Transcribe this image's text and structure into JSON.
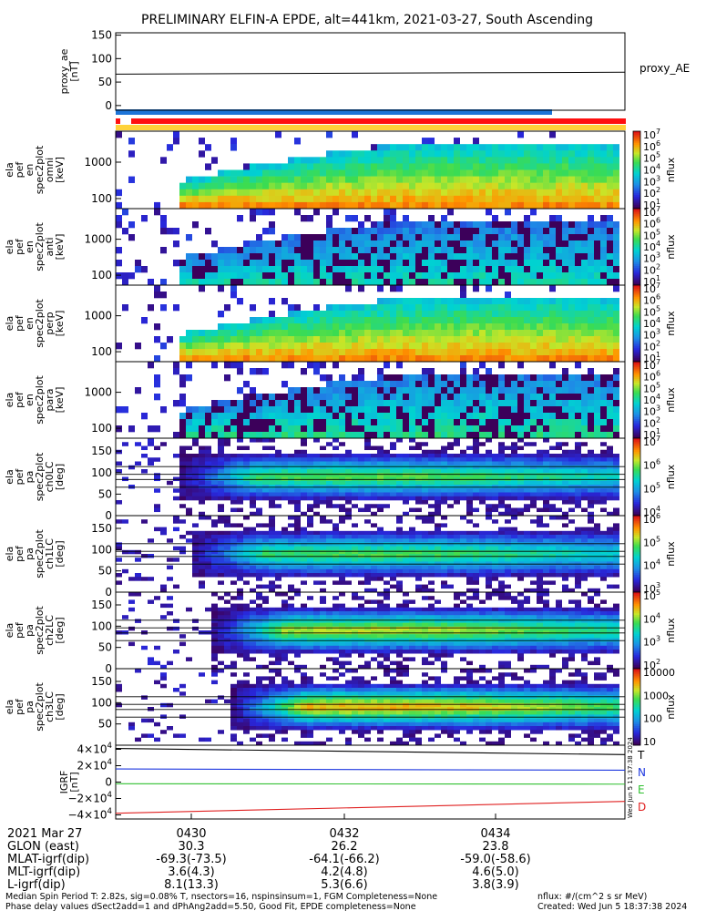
{
  "title": "PRELIMINARY ELFIN-A EPDE, alt=441km, 2021-03-27, South Ascending",
  "colors": {
    "blue_bar": "#1d74d8",
    "red_bar": "#ff1010",
    "yellow_bar": "#ffd23a",
    "T": "#000000",
    "N": "#1e38e0",
    "E": "#30c030",
    "D": "#e02020"
  },
  "chart_data": [
    {
      "type": "line",
      "panel": "proxy_ae",
      "ylabel_lines": [
        "proxy_ae",
        "[nT]"
      ],
      "yticks": [
        "150",
        "100",
        "50",
        "0"
      ],
      "ylim": [
        -10,
        155
      ],
      "series": [
        {
          "name": "proxy_AE",
          "values": [
            67,
            71
          ]
        }
      ],
      "x": [
        "start",
        "end"
      ]
    },
    {
      "type": "heatmap",
      "panel": "energy-spectrogram-1",
      "ylabel_lines": [
        "ela",
        "pef",
        "en",
        "spec2plot",
        "omni",
        "[keV]"
      ],
      "yticks": [
        "1000",
        "100"
      ],
      "y_scale": "log",
      "colorbar_ticks": [
        "10^7",
        "10^6",
        "10^5",
        "10^4",
        "10^3",
        "10^2",
        "10^1"
      ],
      "colorbar_label": "nflux"
    },
    {
      "type": "heatmap",
      "panel": "energy-spectrogram-2",
      "ylabel_lines": [
        "ela",
        "pef",
        "en",
        "spec2plot",
        "anti",
        "[keV]"
      ],
      "yticks": [
        "1000",
        "100"
      ],
      "y_scale": "log",
      "colorbar_ticks": [
        "10^7",
        "10^6",
        "10^5",
        "10^4",
        "10^3",
        "10^2",
        "10^1"
      ],
      "colorbar_label": "nflux"
    },
    {
      "type": "heatmap",
      "panel": "energy-spectrogram-3",
      "ylabel_lines": [
        "ela",
        "pef",
        "en",
        "spec2plot",
        "perp",
        "[keV]"
      ],
      "yticks": [
        "1000",
        "100"
      ],
      "y_scale": "log",
      "colorbar_ticks": [
        "10^7",
        "10^6",
        "10^5",
        "10^4",
        "10^3",
        "10^2",
        "10^1"
      ],
      "colorbar_label": "nflux"
    },
    {
      "type": "heatmap",
      "panel": "energy-spectrogram-4",
      "ylabel_lines": [
        "ela",
        "pef",
        "en",
        "spec2plot",
        "para",
        "[keV]"
      ],
      "yticks": [
        "1000",
        "100"
      ],
      "y_scale": "log",
      "colorbar_ticks": [
        "10^7",
        "10^6",
        "10^5",
        "10^4",
        "10^3",
        "10^2",
        "10^1"
      ],
      "colorbar_label": "nflux"
    },
    {
      "type": "heatmap",
      "panel": "pitch-angle-ch0",
      "ylabel_lines": [
        "ela",
        "pef",
        "pa",
        "spec2plot",
        "ch0LC",
        "[deg]"
      ],
      "yticks": [
        "150",
        "100",
        "50",
        "0"
      ],
      "colorbar_ticks": [
        "10^7",
        "10^6",
        "10^5",
        "10^4"
      ],
      "colorbar_label": "nflux"
    },
    {
      "type": "heatmap",
      "panel": "pitch-angle-ch1",
      "ylabel_lines": [
        "ela",
        "pef",
        "pa",
        "spec2plot",
        "ch1LC",
        "[deg]"
      ],
      "yticks": [
        "150",
        "100",
        "50",
        "0"
      ],
      "colorbar_ticks": [
        "10^6",
        "10^5",
        "10^4",
        "10^3"
      ],
      "colorbar_label": "nflux"
    },
    {
      "type": "heatmap",
      "panel": "pitch-angle-ch2",
      "ylabel_lines": [
        "ela",
        "pef",
        "pa",
        "spec2plot",
        "ch2LC",
        "[deg]"
      ],
      "yticks": [
        "150",
        "100",
        "50",
        "0"
      ],
      "colorbar_ticks": [
        "10^5",
        "10^4",
        "10^3",
        "10^2"
      ],
      "colorbar_label": "nflux"
    },
    {
      "type": "heatmap",
      "panel": "pitch-angle-ch3",
      "ylabel_lines": [
        "ela",
        "pef",
        "pa",
        "spec2plot",
        "ch3LC",
        "[deg]"
      ],
      "yticks": [
        "150",
        "100",
        "50"
      ],
      "colorbar_ticks": [
        "10000",
        "1000",
        "100",
        "10"
      ],
      "colorbar_label": "nflux"
    },
    {
      "type": "line",
      "panel": "igrf",
      "ylabel_lines": [
        "IGRF",
        "[nT]"
      ],
      "yticks": [
        "4×10^4",
        "2×10^4",
        "0",
        "−2×10^4",
        "−4×10^4"
      ],
      "ylim": [
        -45000,
        45000
      ],
      "x": [
        "start",
        "end"
      ],
      "series": [
        {
          "name": "T",
          "values": [
            41000,
            33500
          ]
        },
        {
          "name": "N",
          "values": [
            16000,
            14500
          ]
        },
        {
          "name": "E",
          "values": [
            -2000,
            -2500
          ]
        },
        {
          "name": "D",
          "values": [
            -38000,
            -23500
          ]
        }
      ]
    }
  ],
  "time_axis": {
    "date": "2021 Mar 27",
    "ticks": [
      "0430",
      "0432",
      "0434"
    ],
    "rows": [
      {
        "label": "GLON (east)",
        "values": [
          "30.3",
          "26.2",
          "23.8"
        ]
      },
      {
        "label": "MLAT-igrf(dip)",
        "values": [
          "-69.3(-73.5)",
          "-64.1(-66.2)",
          "-59.0(-58.6)"
        ]
      },
      {
        "label": "MLT-igrf(dip)",
        "values": [
          "3.6(4.3)",
          "4.2(4.8)",
          "4.6(5.0)"
        ]
      },
      {
        "label": "L-igrf(dip)",
        "values": [
          "8.1(13.3)",
          "5.3(6.6)",
          "3.8(3.9)"
        ]
      }
    ]
  },
  "footer": {
    "line1": "Median Spin Period T: 2.82s, sig=0.08% T, nsectors=16, nspinsinsum=1, FGM Completeness=None",
    "line2": "Phase delay values dSect2add=1 and dPhAng2add=5.50, Good Fit, EPDE completeness=None",
    "units": "nflux: #/(cm^2 s sr MeV)",
    "created": "Created: Wed Jun  5 18:37:38 2024"
  },
  "side_stamp": "Wed Jun  5 11:37:38 2024"
}
